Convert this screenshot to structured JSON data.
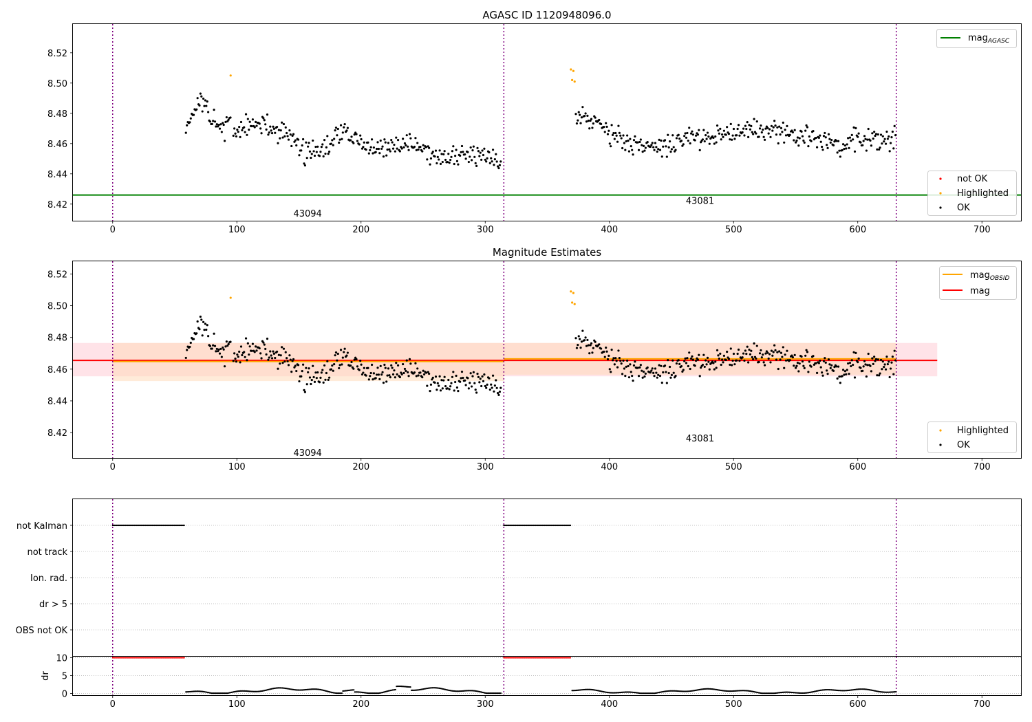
{
  "colors": {
    "ok": "#000000",
    "not_ok": "#ff0000",
    "highlighted": "#ffa500",
    "mag_agasc": "#008000",
    "mag_obsid": "#ffa500",
    "mag": "#ff0000",
    "obs_sep": "#800080",
    "mag_band": "#ffc0cb",
    "obsid_band": "#ffdab9"
  },
  "chart_data": [
    {
      "type": "scatter",
      "title": "AGASC ID 1120948096.0",
      "xlim": [
        -32,
        732
      ],
      "ylim": [
        8.409,
        8.539
      ],
      "xticks": [
        "0",
        "100",
        "200",
        "300",
        "400",
        "500",
        "600",
        "700"
      ],
      "yticks": [
        "8.42",
        "8.44",
        "8.46",
        "8.48",
        "8.50",
        "8.52"
      ],
      "observation_boundaries": [
        0,
        315,
        631
      ],
      "observation_labels": [
        {
          "label": "43094",
          "x": 157,
          "y": 8.414
        },
        {
          "label": "43081",
          "x": 473,
          "y": 8.4225
        }
      ],
      "mag_agasc": 8.426,
      "legend_lines": [
        {
          "label": "mag",
          "sub": "AGASC"
        }
      ],
      "legend_points": [
        "not OK",
        "Highlighted",
        "OK"
      ],
      "highlighted_points": [
        [
          95,
          8.505
        ],
        [
          369,
          8.509
        ],
        [
          371,
          8.508
        ],
        [
          370,
          8.502
        ],
        [
          372,
          8.501
        ]
      ]
    },
    {
      "type": "scatter",
      "title": "Magnitude Estimates",
      "xlim": [
        -32,
        732
      ],
      "ylim": [
        8.404,
        8.528
      ],
      "xticks": [
        "0",
        "100",
        "200",
        "300",
        "400",
        "500",
        "600",
        "700"
      ],
      "yticks": [
        "8.42",
        "8.44",
        "8.46",
        "8.48",
        "8.50",
        "8.52"
      ],
      "observation_boundaries": [
        0,
        315,
        631
      ],
      "observation_labels": [
        {
          "label": "43094",
          "x": 157,
          "y": 8.4075
        },
        {
          "label": "43081",
          "x": 473,
          "y": 8.4165
        }
      ],
      "mag": 8.4655,
      "mag_band": [
        8.4555,
        8.4765
      ],
      "mag_extent": [
        -32,
        664
      ],
      "obsid_mags": [
        {
          "x0": 0,
          "x1": 315,
          "mag": 8.4648,
          "band": [
            8.4525,
            8.4765
          ]
        },
        {
          "x0": 315,
          "x1": 631,
          "mag": 8.4665,
          "band": [
            8.4565,
            8.4765
          ]
        }
      ],
      "legend_lines": [
        {
          "label": "mag",
          "sub": "OBSID"
        },
        {
          "label": "mag",
          "sub": ""
        }
      ],
      "legend_points": [
        "Highlighted",
        "OK"
      ],
      "highlighted_points": [
        [
          95,
          8.505
        ],
        [
          369,
          8.509
        ],
        [
          371,
          8.508
        ],
        [
          370,
          8.502
        ],
        [
          372,
          8.501
        ]
      ]
    },
    {
      "type": "scatter",
      "title": "",
      "xlim": [
        -32,
        732
      ],
      "categories": [
        "not Kalman",
        "not track",
        "Ion. rad.",
        "dr > 5",
        "OBS not OK"
      ],
      "flag_ranges": [
        {
          "category": "not Kalman",
          "x0": 0,
          "x1": 58
        },
        {
          "category": "not Kalman",
          "x0": 315,
          "x1": 369
        }
      ],
      "observation_boundaries": [
        0,
        315,
        631
      ]
    },
    {
      "type": "scatter",
      "title": "",
      "ylabel": "dr",
      "xlim": [
        -32,
        732
      ],
      "ylim": [
        -0.5,
        10.3
      ],
      "xticks": [
        "0",
        "100",
        "200",
        "300",
        "400",
        "500",
        "600",
        "700"
      ],
      "yticks": [
        "0",
        "5",
        "10"
      ],
      "clipped_ranges": [
        {
          "x0": 0,
          "x1": 58,
          "value": 10
        },
        {
          "x0": 315,
          "x1": 369,
          "value": 10
        }
      ],
      "observation_boundaries": [
        0,
        315,
        631
      ]
    }
  ]
}
